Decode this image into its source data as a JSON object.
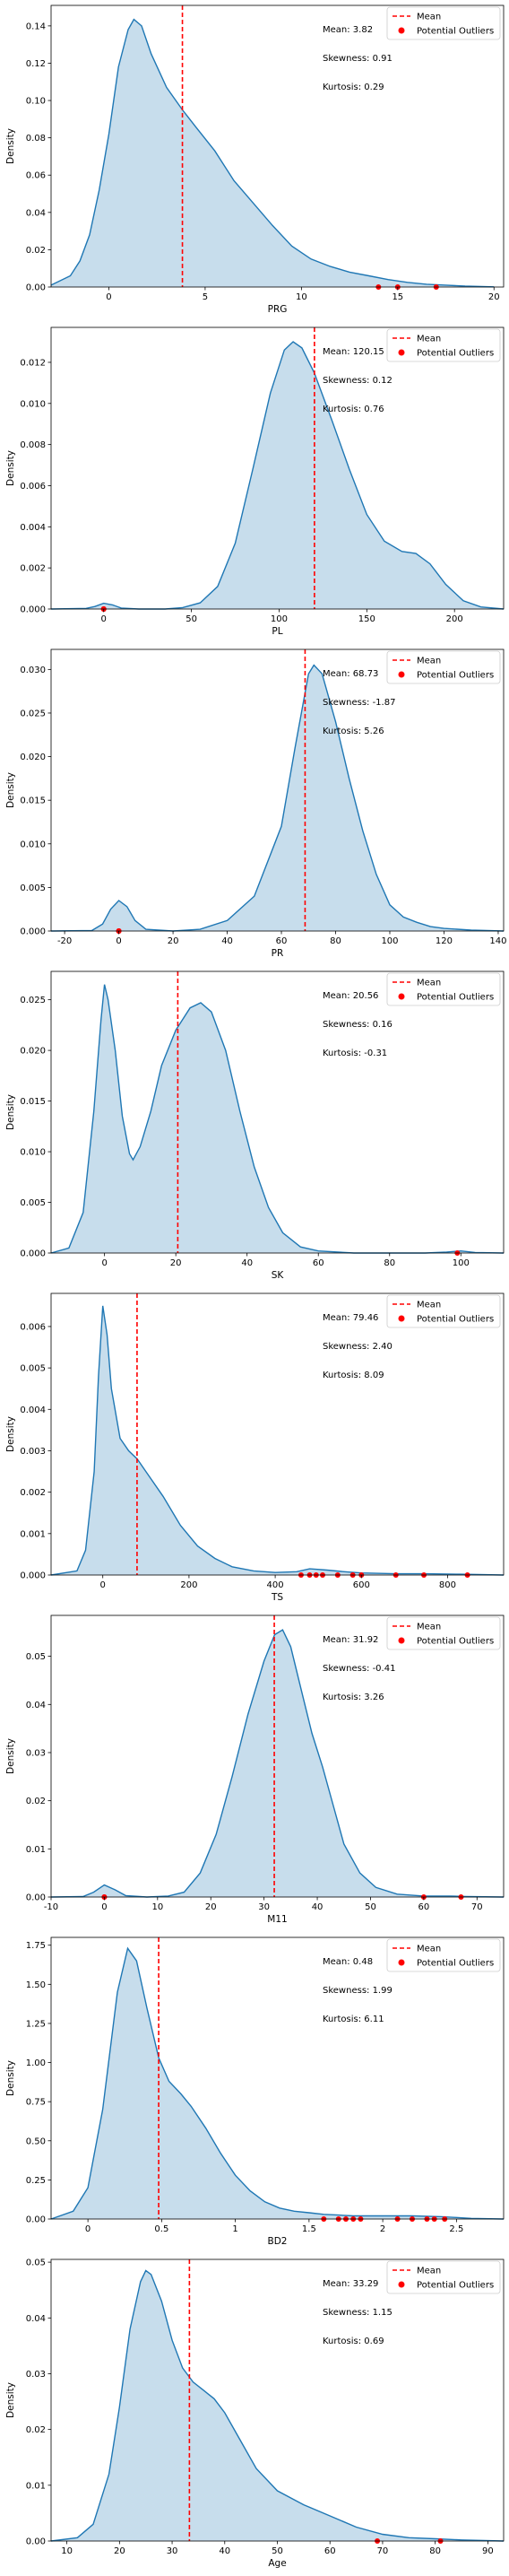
{
  "chart_data": [
    {
      "type": "area",
      "xlabel": "PRG",
      "ylabel": "Density",
      "xlim": [
        -3,
        20.5
      ],
      "ylim": [
        0,
        0.151
      ],
      "xticks": [
        0,
        5,
        10,
        15,
        20
      ],
      "yticks": [
        0.0,
        0.02,
        0.04,
        0.06,
        0.08,
        0.1,
        0.12,
        0.14
      ],
      "ytick_labels": [
        "0.00",
        "0.02",
        "0.04",
        "0.06",
        "0.08",
        "0.10",
        "0.12",
        "0.14"
      ],
      "curve": [
        [
          -3,
          0.001
        ],
        [
          -2,
          0.006
        ],
        [
          -1.5,
          0.014
        ],
        [
          -1,
          0.028
        ],
        [
          -0.5,
          0.052
        ],
        [
          0,
          0.082
        ],
        [
          0.5,
          0.118
        ],
        [
          1,
          0.138
        ],
        [
          1.3,
          0.1435
        ],
        [
          1.7,
          0.14
        ],
        [
          2.2,
          0.125
        ],
        [
          3,
          0.107
        ],
        [
          3.82,
          0.095
        ],
        [
          4.5,
          0.086
        ],
        [
          5.5,
          0.073
        ],
        [
          6.5,
          0.057
        ],
        [
          7.5,
          0.045
        ],
        [
          8.5,
          0.033
        ],
        [
          9.5,
          0.022
        ],
        [
          10.5,
          0.015
        ],
        [
          11.5,
          0.011
        ],
        [
          12.5,
          0.008
        ],
        [
          13.5,
          0.006
        ],
        [
          14.5,
          0.004
        ],
        [
          15.5,
          0.0025
        ],
        [
          16.5,
          0.0015
        ],
        [
          17.5,
          0.001
        ],
        [
          18.5,
          0.0005
        ],
        [
          20,
          0.0001
        ]
      ],
      "mean": 3.82,
      "mean_label": "Mean: 3.82",
      "skewness_label": "Skewness: 0.91",
      "kurtosis_label": "Kurtosis: 0.29",
      "outliers": [
        14,
        15,
        17
      ],
      "legend": {
        "mean": "Mean",
        "outliers": "Potential Outliers"
      }
    },
    {
      "type": "area",
      "xlabel": "PL",
      "ylabel": "Density",
      "xlim": [
        -30,
        228
      ],
      "ylim": [
        0,
        0.0137
      ],
      "xticks": [
        0,
        50,
        100,
        150,
        200
      ],
      "yticks": [
        0.0,
        0.002,
        0.004,
        0.006,
        0.008,
        0.01,
        0.012
      ],
      "ytick_labels": [
        "0.000",
        "0.002",
        "0.004",
        "0.006",
        "0.008",
        "0.010",
        "0.012"
      ],
      "curve": [
        [
          -30,
          0
        ],
        [
          -10,
          3e-05
        ],
        [
          -5,
          0.00012
        ],
        [
          0,
          0.00028
        ],
        [
          5,
          0.0002
        ],
        [
          10,
          5e-05
        ],
        [
          20,
          0
        ],
        [
          35,
          0
        ],
        [
          45,
          7e-05
        ],
        [
          55,
          0.0003
        ],
        [
          65,
          0.0011
        ],
        [
          75,
          0.0032
        ],
        [
          85,
          0.0068
        ],
        [
          95,
          0.0105
        ],
        [
          103,
          0.0126
        ],
        [
          108,
          0.013
        ],
        [
          113,
          0.0127
        ],
        [
          120,
          0.0115
        ],
        [
          130,
          0.0092
        ],
        [
          140,
          0.0068
        ],
        [
          150,
          0.0046
        ],
        [
          160,
          0.0033
        ],
        [
          170,
          0.0028
        ],
        [
          178,
          0.0027
        ],
        [
          186,
          0.0022
        ],
        [
          195,
          0.0012
        ],
        [
          205,
          0.0004
        ],
        [
          215,
          0.0001
        ],
        [
          228,
          0
        ]
      ],
      "mean": 120.15,
      "mean_label": "Mean: 120.15",
      "skewness_label": "Skewness: 0.12",
      "kurtosis_label": "Kurtosis: 0.76",
      "outliers": [
        0,
        0,
        0
      ],
      "legend": {
        "mean": "Mean",
        "outliers": "Potential Outliers"
      }
    },
    {
      "type": "area",
      "xlabel": "PR",
      "ylabel": "Density",
      "xlim": [
        -25,
        142
      ],
      "ylim": [
        0,
        0.0323
      ],
      "xticks": [
        -20,
        0,
        20,
        40,
        60,
        80,
        100,
        120,
        140
      ],
      "yticks": [
        0.0,
        0.005,
        0.01,
        0.015,
        0.02,
        0.025,
        0.03
      ],
      "ytick_labels": [
        "0.000",
        "0.005",
        "0.010",
        "0.015",
        "0.020",
        "0.025",
        "0.030"
      ],
      "curve": [
        [
          -25,
          0
        ],
        [
          -10,
          5e-05
        ],
        [
          -6,
          0.0008
        ],
        [
          -3,
          0.0025
        ],
        [
          0,
          0.0035
        ],
        [
          3,
          0.0028
        ],
        [
          6,
          0.0012
        ],
        [
          10,
          0.0002
        ],
        [
          20,
          0
        ],
        [
          30,
          0.0002
        ],
        [
          40,
          0.0012
        ],
        [
          50,
          0.004
        ],
        [
          60,
          0.012
        ],
        [
          65,
          0.021
        ],
        [
          70,
          0.0295
        ],
        [
          72,
          0.0305
        ],
        [
          75,
          0.0295
        ],
        [
          80,
          0.024
        ],
        [
          85,
          0.0175
        ],
        [
          90,
          0.0115
        ],
        [
          95,
          0.0065
        ],
        [
          100,
          0.003
        ],
        [
          105,
          0.0016
        ],
        [
          110,
          0.001
        ],
        [
          115,
          0.0005
        ],
        [
          120,
          0.0003
        ],
        [
          130,
          0.0001
        ],
        [
          142,
          0
        ]
      ],
      "mean": 68.73,
      "mean_label": "Mean: 68.73",
      "skewness_label": "Skewness: -1.87",
      "kurtosis_label": "Kurtosis: 5.26",
      "outliers": [
        0,
        0,
        0
      ],
      "legend": {
        "mean": "Mean",
        "outliers": "Potential Outliers"
      }
    },
    {
      "type": "area",
      "xlabel": "SK",
      "ylabel": "Density",
      "xlim": [
        -15,
        112
      ],
      "ylim": [
        0,
        0.0278
      ],
      "xticks": [
        0,
        20,
        40,
        60,
        80,
        100
      ],
      "yticks": [
        0.0,
        0.005,
        0.01,
        0.015,
        0.02,
        0.025
      ],
      "ytick_labels": [
        "0.000",
        "0.005",
        "0.010",
        "0.015",
        "0.020",
        "0.025"
      ],
      "curve": [
        [
          -15,
          0
        ],
        [
          -10,
          0.0005
        ],
        [
          -6,
          0.004
        ],
        [
          -3,
          0.014
        ],
        [
          -1,
          0.023
        ],
        [
          0,
          0.0265
        ],
        [
          1,
          0.025
        ],
        [
          3,
          0.02
        ],
        [
          5,
          0.0135
        ],
        [
          7,
          0.0098
        ],
        [
          8,
          0.0092
        ],
        [
          10,
          0.0105
        ],
        [
          13,
          0.014
        ],
        [
          16,
          0.0185
        ],
        [
          20,
          0.022
        ],
        [
          24,
          0.0242
        ],
        [
          27,
          0.0247
        ],
        [
          30,
          0.0238
        ],
        [
          34,
          0.02
        ],
        [
          38,
          0.014
        ],
        [
          42,
          0.0085
        ],
        [
          46,
          0.0045
        ],
        [
          50,
          0.002
        ],
        [
          55,
          0.0006
        ],
        [
          60,
          0.0002
        ],
        [
          70,
          0
        ],
        [
          90,
          0
        ],
        [
          96,
          0.0001
        ],
        [
          100,
          0.0002
        ],
        [
          104,
          5e-05
        ],
        [
          112,
          0
        ]
      ],
      "mean": 20.56,
      "mean_label": "Mean: 20.56",
      "skewness_label": "Skewness: 0.16",
      "kurtosis_label": "Kurtosis: -0.31",
      "outliers": [
        99
      ],
      "legend": {
        "mean": "Mean",
        "outliers": "Potential Outliers"
      }
    },
    {
      "type": "area",
      "xlabel": "TS",
      "ylabel": "Density",
      "xlim": [
        -120,
        930
      ],
      "ylim": [
        0,
        0.0068
      ],
      "xticks": [
        0,
        200,
        400,
        600,
        800
      ],
      "yticks": [
        0.0,
        0.001,
        0.002,
        0.003,
        0.004,
        0.005,
        0.006
      ],
      "ytick_labels": [
        "0.000",
        "0.001",
        "0.002",
        "0.003",
        "0.004",
        "0.005",
        "0.006"
      ],
      "curve": [
        [
          -120,
          0
        ],
        [
          -60,
          0.0001
        ],
        [
          -40,
          0.0006
        ],
        [
          -20,
          0.0025
        ],
        [
          -10,
          0.0048
        ],
        [
          0,
          0.0065
        ],
        [
          10,
          0.0058
        ],
        [
          20,
          0.0045
        ],
        [
          40,
          0.0033
        ],
        [
          60,
          0.003
        ],
        [
          80,
          0.0028
        ],
        [
          100,
          0.0025
        ],
        [
          140,
          0.0019
        ],
        [
          180,
          0.0012
        ],
        [
          220,
          0.0007
        ],
        [
          260,
          0.0004
        ],
        [
          300,
          0.0002
        ],
        [
          350,
          0.0001
        ],
        [
          400,
          6e-05
        ],
        [
          450,
          8e-05
        ],
        [
          480,
          0.00015
        ],
        [
          520,
          0.00012
        ],
        [
          560,
          8e-05
        ],
        [
          600,
          5e-05
        ],
        [
          680,
          3e-05
        ],
        [
          750,
          3e-05
        ],
        [
          830,
          2e-05
        ],
        [
          930,
          0
        ]
      ],
      "mean": 79.46,
      "mean_label": "Mean: 79.46",
      "skewness_label": "Skewness: 2.40",
      "kurtosis_label": "Kurtosis: 8.09",
      "outliers": [
        460,
        480,
        495,
        510,
        545,
        580,
        600,
        680,
        745,
        846
      ],
      "legend": {
        "mean": "Mean",
        "outliers": "Potential Outliers"
      }
    },
    {
      "type": "area",
      "xlabel": "M11",
      "ylabel": "Density",
      "xlim": [
        -10,
        75
      ],
      "ylim": [
        0,
        0.0585
      ],
      "xticks": [
        -10,
        0,
        10,
        20,
        30,
        40,
        50,
        60,
        70
      ],
      "yticks": [
        0.0,
        0.01,
        0.02,
        0.03,
        0.04,
        0.05
      ],
      "ytick_labels": [
        "0.00",
        "0.01",
        "0.02",
        "0.03",
        "0.04",
        "0.05"
      ],
      "curve": [
        [
          -10,
          0
        ],
        [
          -4,
          0.0001
        ],
        [
          -2,
          0.001
        ],
        [
          0,
          0.0025
        ],
        [
          2,
          0.0015
        ],
        [
          4,
          0.0003
        ],
        [
          8,
          0
        ],
        [
          12,
          0.0002
        ],
        [
          15,
          0.001
        ],
        [
          18,
          0.005
        ],
        [
          21,
          0.013
        ],
        [
          24,
          0.025
        ],
        [
          27,
          0.038
        ],
        [
          30,
          0.049
        ],
        [
          32,
          0.0545
        ],
        [
          33.5,
          0.0555
        ],
        [
          35,
          0.052
        ],
        [
          37,
          0.043
        ],
        [
          39,
          0.034
        ],
        [
          41,
          0.027
        ],
        [
          43,
          0.019
        ],
        [
          45,
          0.011
        ],
        [
          48,
          0.005
        ],
        [
          51,
          0.002
        ],
        [
          55,
          0.0006
        ],
        [
          60,
          0.0002
        ],
        [
          65,
          0.0002
        ],
        [
          68,
          0.0001
        ],
        [
          75,
          0
        ]
      ],
      "mean": 31.92,
      "mean_label": "Mean: 31.92",
      "skewness_label": "Skewness: -0.41",
      "kurtosis_label": "Kurtosis: 3.26",
      "outliers": [
        0,
        0,
        60,
        67
      ],
      "legend": {
        "mean": "Mean",
        "outliers": "Potential Outliers"
      }
    },
    {
      "type": "area",
      "xlabel": "BD2",
      "ylabel": "Density",
      "xlim": [
        -0.25,
        2.82
      ],
      "ylim": [
        0,
        1.8
      ],
      "xticks": [
        0.0,
        0.5,
        1.0,
        1.5,
        2.0,
        2.5
      ],
      "yticks": [
        0.0,
        0.25,
        0.5,
        0.75,
        1.0,
        1.25,
        1.5,
        1.75
      ],
      "ytick_labels": [
        "0.00",
        "0.25",
        "0.50",
        "0.75",
        "1.00",
        "1.25",
        "1.50",
        "1.75"
      ],
      "curve": [
        [
          -0.25,
          0
        ],
        [
          -0.1,
          0.05
        ],
        [
          0,
          0.2
        ],
        [
          0.1,
          0.7
        ],
        [
          0.2,
          1.45
        ],
        [
          0.27,
          1.73
        ],
        [
          0.33,
          1.65
        ],
        [
          0.4,
          1.35
        ],
        [
          0.48,
          1.03
        ],
        [
          0.55,
          0.88
        ],
        [
          0.63,
          0.8
        ],
        [
          0.7,
          0.72
        ],
        [
          0.8,
          0.58
        ],
        [
          0.9,
          0.42
        ],
        [
          1.0,
          0.28
        ],
        [
          1.1,
          0.18
        ],
        [
          1.2,
          0.11
        ],
        [
          1.3,
          0.07
        ],
        [
          1.4,
          0.05
        ],
        [
          1.5,
          0.04
        ],
        [
          1.6,
          0.03
        ],
        [
          1.7,
          0.025
        ],
        [
          1.8,
          0.02
        ],
        [
          2.0,
          0.02
        ],
        [
          2.2,
          0.02
        ],
        [
          2.4,
          0.015
        ],
        [
          2.5,
          0.01
        ],
        [
          2.6,
          0.004
        ],
        [
          2.82,
          0
        ]
      ],
      "mean": 0.48,
      "mean_label": "Mean: 0.48",
      "skewness_label": "Skewness: 1.99",
      "kurtosis_label": "Kurtosis: 6.11",
      "outliers": [
        1.6,
        1.7,
        1.75,
        1.8,
        1.85,
        2.1,
        2.2,
        2.3,
        2.35,
        2.42
      ],
      "legend": {
        "mean": "Mean",
        "outliers": "Potential Outliers"
      }
    },
    {
      "type": "area",
      "xlabel": "Age",
      "ylabel": "Density",
      "xlim": [
        7,
        93
      ],
      "ylim": [
        0,
        0.0505
      ],
      "xticks": [
        10,
        20,
        30,
        40,
        50,
        60,
        70,
        80,
        90
      ],
      "yticks": [
        0.0,
        0.01,
        0.02,
        0.03,
        0.04,
        0.05
      ],
      "ytick_labels": [
        "0.00",
        "0.01",
        "0.02",
        "0.03",
        "0.04",
        "0.05"
      ],
      "curve": [
        [
          7,
          0
        ],
        [
          12,
          0.0006
        ],
        [
          15,
          0.003
        ],
        [
          18,
          0.012
        ],
        [
          20,
          0.024
        ],
        [
          22,
          0.038
        ],
        [
          24,
          0.0465
        ],
        [
          25,
          0.0485
        ],
        [
          26,
          0.0478
        ],
        [
          28,
          0.043
        ],
        [
          30,
          0.036
        ],
        [
          32,
          0.031
        ],
        [
          34,
          0.0285
        ],
        [
          36,
          0.027
        ],
        [
          38,
          0.0255
        ],
        [
          40,
          0.023
        ],
        [
          43,
          0.018
        ],
        [
          46,
          0.013
        ],
        [
          50,
          0.009
        ],
        [
          55,
          0.0065
        ],
        [
          60,
          0.0045
        ],
        [
          65,
          0.0025
        ],
        [
          70,
          0.0012
        ],
        [
          75,
          0.0006
        ],
        [
          80,
          0.0004
        ],
        [
          85,
          0.0002
        ],
        [
          93,
          0
        ]
      ],
      "mean": 33.29,
      "mean_label": "Mean: 33.29",
      "skewness_label": "Skewness: 1.15",
      "kurtosis_label": "Kurtosis: 0.69",
      "outliers": [
        69,
        81
      ],
      "legend": {
        "mean": "Mean",
        "outliers": "Potential Outliers"
      }
    }
  ]
}
